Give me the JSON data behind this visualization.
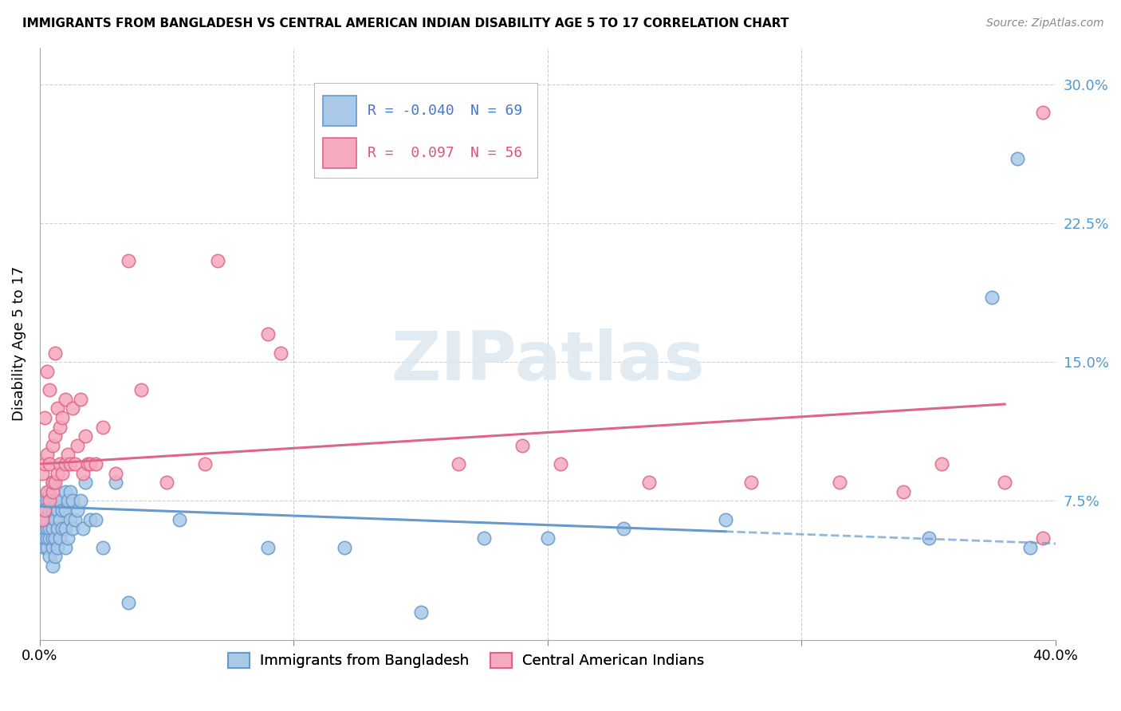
{
  "title": "IMMIGRANTS FROM BANGLADESH VS CENTRAL AMERICAN INDIAN DISABILITY AGE 5 TO 17 CORRELATION CHART",
  "source": "Source: ZipAtlas.com",
  "ylabel": "Disability Age 5 to 17",
  "xlim": [
    0,
    40
  ],
  "ylim": [
    0,
    32
  ],
  "yticks": [
    0,
    7.5,
    15.0,
    22.5,
    30.0
  ],
  "ytick_labels": [
    "",
    "7.5%",
    "15.0%",
    "22.5%",
    "30.0%"
  ],
  "xtick_positions": [
    0,
    10,
    20,
    30,
    40
  ],
  "xtick_labels": [
    "0.0%",
    "",
    "",
    "",
    "40.0%"
  ],
  "legend_R1": "-0.040",
  "legend_N1": "69",
  "legend_R2": " 0.097",
  "legend_N2": "56",
  "blue_color": "#aac9e8",
  "pink_color": "#f5aabf",
  "blue_edge": "#6699cc",
  "pink_edge": "#dd6688",
  "trend_blue": "#6699cc",
  "trend_pink": "#dd6688",
  "watermark": "ZIPatlas",
  "blue_intercept": 7.2,
  "blue_slope": -0.05,
  "blue_solid_end": 27.0,
  "pink_intercept": 9.5,
  "pink_slope": 0.085,
  "pink_solid_end": 38.0,
  "blue_scatter_x": [
    0.1,
    0.1,
    0.1,
    0.1,
    0.2,
    0.2,
    0.2,
    0.2,
    0.3,
    0.3,
    0.3,
    0.3,
    0.3,
    0.4,
    0.4,
    0.4,
    0.4,
    0.4,
    0.5,
    0.5,
    0.5,
    0.5,
    0.5,
    0.5,
    0.6,
    0.6,
    0.6,
    0.6,
    0.7,
    0.7,
    0.7,
    0.7,
    0.8,
    0.8,
    0.8,
    0.9,
    0.9,
    1.0,
    1.0,
    1.0,
    1.0,
    1.1,
    1.1,
    1.2,
    1.2,
    1.3,
    1.3,
    1.4,
    1.5,
    1.6,
    1.7,
    1.8,
    2.0,
    2.2,
    2.5,
    3.0,
    3.5,
    5.5,
    9.0,
    12.0,
    15.0,
    17.5,
    20.0,
    23.0,
    27.0,
    35.0,
    37.5,
    38.5,
    39.0
  ],
  "blue_scatter_y": [
    5.5,
    6.0,
    6.5,
    7.0,
    5.0,
    5.5,
    6.5,
    7.5,
    5.0,
    5.5,
    6.0,
    6.5,
    7.5,
    4.5,
    5.5,
    6.0,
    7.0,
    8.0,
    4.0,
    5.0,
    5.5,
    6.0,
    7.0,
    8.5,
    4.5,
    5.5,
    6.5,
    7.5,
    5.0,
    6.0,
    7.0,
    7.5,
    5.5,
    6.5,
    7.5,
    6.0,
    7.0,
    5.0,
    6.0,
    7.0,
    8.0,
    5.5,
    7.5,
    6.5,
    8.0,
    6.0,
    7.5,
    6.5,
    7.0,
    7.5,
    6.0,
    8.5,
    6.5,
    6.5,
    5.0,
    8.5,
    2.0,
    6.5,
    5.0,
    5.0,
    1.5,
    5.5,
    5.5,
    6.0,
    6.5,
    5.5,
    18.5,
    26.0,
    5.0
  ],
  "pink_scatter_x": [
    0.1,
    0.1,
    0.2,
    0.2,
    0.2,
    0.3,
    0.3,
    0.3,
    0.4,
    0.4,
    0.4,
    0.5,
    0.5,
    0.5,
    0.6,
    0.6,
    0.6,
    0.7,
    0.7,
    0.8,
    0.8,
    0.9,
    0.9,
    1.0,
    1.0,
    1.1,
    1.2,
    1.3,
    1.4,
    1.5,
    1.6,
    1.7,
    1.8,
    1.9,
    2.0,
    2.2,
    2.5,
    3.0,
    3.5,
    4.0,
    5.0,
    6.5,
    7.0,
    9.0,
    9.5,
    16.5,
    19.0,
    20.5,
    24.0,
    28.0,
    31.5,
    34.0,
    35.5,
    38.0,
    39.5,
    39.5
  ],
  "pink_scatter_y": [
    6.5,
    9.0,
    7.0,
    9.5,
    12.0,
    8.0,
    10.0,
    14.5,
    7.5,
    9.5,
    13.5,
    8.0,
    10.5,
    8.5,
    8.5,
    11.0,
    15.5,
    9.0,
    12.5,
    9.5,
    11.5,
    9.0,
    12.0,
    9.5,
    13.0,
    10.0,
    9.5,
    12.5,
    9.5,
    10.5,
    13.0,
    9.0,
    11.0,
    9.5,
    9.5,
    9.5,
    11.5,
    9.0,
    20.5,
    13.5,
    8.5,
    9.5,
    20.5,
    16.5,
    15.5,
    9.5,
    10.5,
    9.5,
    8.5,
    8.5,
    8.5,
    8.0,
    9.5,
    8.5,
    5.5,
    28.5
  ]
}
